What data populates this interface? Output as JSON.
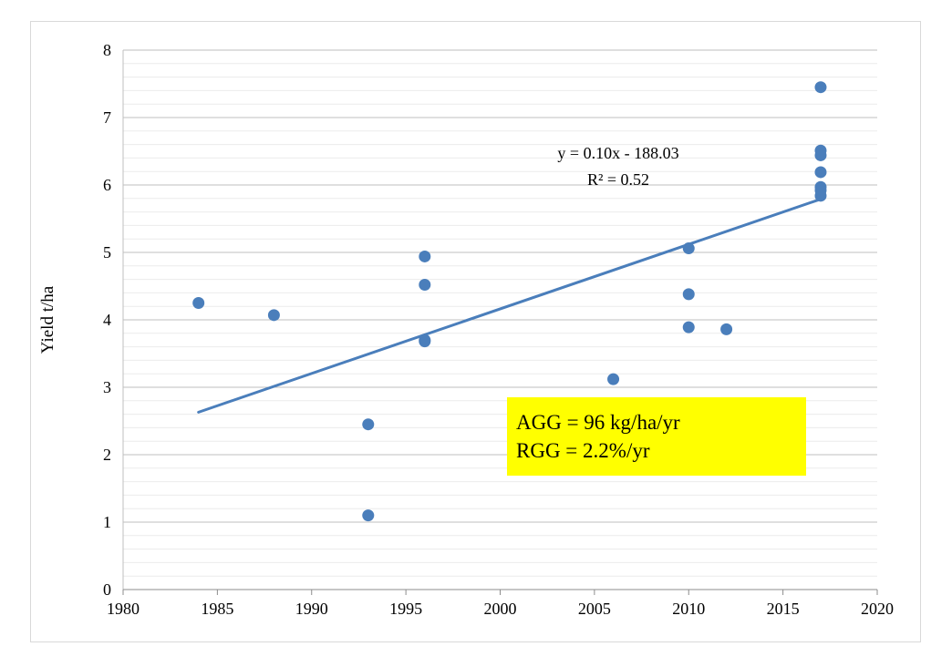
{
  "chart_data": {
    "type": "scatter",
    "ylabel": "Yield t/ha",
    "xlabel": "",
    "xlim": [
      1980,
      2020
    ],
    "ylim": [
      0,
      8
    ],
    "x_ticks": [
      "1980",
      "1985",
      "1990",
      "1995",
      "2000",
      "2005",
      "2010",
      "2015",
      "2020"
    ],
    "y_ticks": [
      "0",
      "1",
      "2",
      "3",
      "4",
      "5",
      "6",
      "7",
      "8"
    ],
    "grid": true,
    "points": [
      {
        "x": 1984,
        "y": 4.25
      },
      {
        "x": 1988,
        "y": 4.07
      },
      {
        "x": 1993,
        "y": 2.45
      },
      {
        "x": 1993,
        "y": 1.1
      },
      {
        "x": 1996,
        "y": 4.94
      },
      {
        "x": 1996,
        "y": 4.52
      },
      {
        "x": 1996,
        "y": 3.7
      },
      {
        "x": 1996,
        "y": 3.68
      },
      {
        "x": 2006,
        "y": 3.12
      },
      {
        "x": 2010,
        "y": 5.06
      },
      {
        "x": 2010,
        "y": 4.38
      },
      {
        "x": 2010,
        "y": 3.89
      },
      {
        "x": 2012,
        "y": 3.86
      },
      {
        "x": 2017,
        "y": 7.45
      },
      {
        "x": 2017,
        "y": 6.51
      },
      {
        "x": 2017,
        "y": 6.44
      },
      {
        "x": 2017,
        "y": 6.19
      },
      {
        "x": 2017,
        "y": 5.97
      },
      {
        "x": 2017,
        "y": 5.92
      },
      {
        "x": 2017,
        "y": 5.84
      }
    ],
    "trendline": {
      "equation": "y = 0.10x - 188.03",
      "r_squared": "R² = 0.52",
      "x": [
        1984,
        2017
      ],
      "y": [
        2.63,
        5.79
      ]
    },
    "annotation": {
      "line1": "AGG = 96 kg/ha/yr",
      "line2": "RGG = 2.2%/yr",
      "background": "#ffff00"
    },
    "colors": {
      "marker": "#4a7ebb",
      "trendline": "#4a7ebb",
      "grid": "#d9d9d9"
    }
  }
}
